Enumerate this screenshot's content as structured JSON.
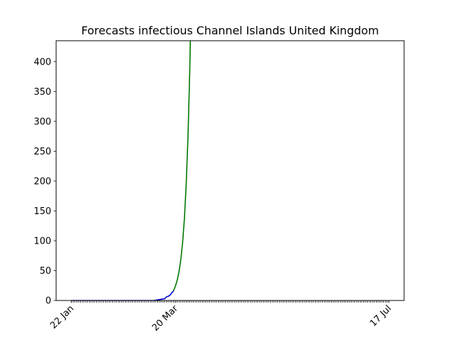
{
  "chart_data": {
    "type": "line",
    "title": "Forecasts infectious Channel Islands United Kingdom",
    "xlabel": "",
    "ylabel": "",
    "x_axis": {
      "type": "date",
      "start": "2020-01-22",
      "end": "2020-07-17",
      "labeled_ticks": [
        "22 Jan",
        "20 Mar",
        "17 Jul"
      ],
      "minor_ticks": "daily"
    },
    "ylim": [
      0,
      435
    ],
    "yticks": [
      0,
      50,
      100,
      150,
      200,
      250,
      300,
      350,
      400
    ],
    "grid": false,
    "legend": "none",
    "series": [
      {
        "color": "#0000cc",
        "style": "solid",
        "points": [
          [
            "2020-01-22",
            0
          ],
          [
            "2020-02-20",
            0
          ],
          [
            "2020-03-08",
            0
          ],
          [
            "2020-03-10",
            1
          ],
          [
            "2020-03-12",
            2
          ],
          [
            "2020-03-14",
            3
          ],
          [
            "2020-03-15",
            6
          ],
          [
            "2020-03-16",
            7
          ],
          [
            "2020-03-17",
            9
          ],
          [
            "2020-03-18",
            13
          ],
          [
            "2020-03-19",
            16
          ]
        ]
      },
      {
        "color": "#007700",
        "style": "solid",
        "points": [
          [
            "2020-03-19",
            17
          ],
          [
            "2020-03-20",
            24
          ],
          [
            "2020-03-21",
            34
          ],
          [
            "2020-03-22",
            48
          ],
          [
            "2020-03-23",
            68
          ],
          [
            "2020-03-24",
            96
          ],
          [
            "2020-03-25",
            136
          ],
          [
            "2020-03-26",
            193
          ],
          [
            "2020-03-27",
            272
          ],
          [
            "2020-03-28",
            385
          ],
          [
            "2020-03-29",
            545
          ]
        ]
      }
    ]
  }
}
